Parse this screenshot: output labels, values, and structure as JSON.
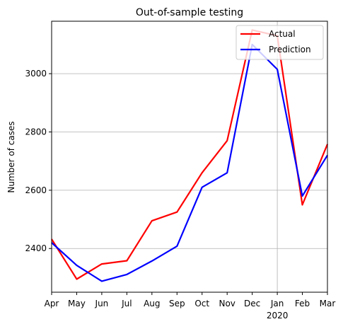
{
  "chart_data": {
    "type": "line",
    "title": "Out-of-sample testing",
    "xlabel": "",
    "ylabel": "Number of cases",
    "categories": [
      "Apr",
      "May",
      "Jun",
      "Jul",
      "Aug",
      "Sep",
      "Oct",
      "Nov",
      "Dec",
      "Jan",
      "Feb",
      "Mar"
    ],
    "x_sublabels": [
      {
        "category": "Jan",
        "text": "2020"
      }
    ],
    "ylim": [
      2250,
      3180
    ],
    "yticks": [
      2400,
      2600,
      2800,
      3000
    ],
    "grid": "on (vertical gridline at Jan)",
    "legend_position": "top-right",
    "series": [
      {
        "name": "Actual",
        "color": "#ff0000",
        "values": [
          2432,
          2295,
          2347,
          2358,
          2495,
          2525,
          2660,
          2770,
          3150,
          3130,
          2550,
          2758
        ]
      },
      {
        "name": "Prediction",
        "color": "#0000ff",
        "values": [
          2420,
          2342,
          2288,
          2311,
          2357,
          2408,
          2610,
          2660,
          3100,
          3015,
          2580,
          2720
        ]
      }
    ]
  }
}
